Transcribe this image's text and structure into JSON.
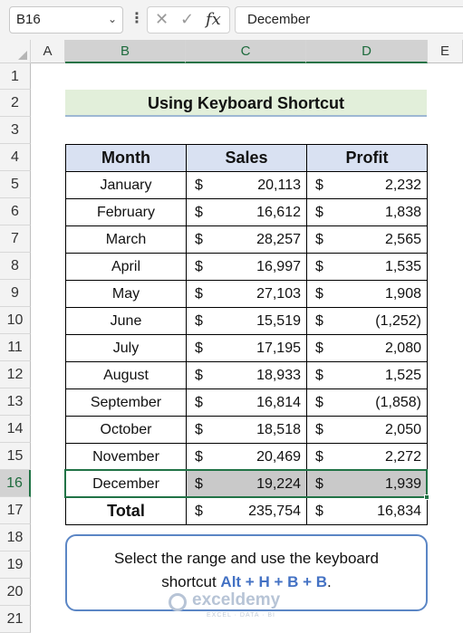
{
  "name_box": "B16",
  "formula_bar": {
    "value": "December"
  },
  "icons": {
    "chevron": "chevron-down-icon",
    "more": "more-vertical-icon",
    "cancel": "cancel-icon",
    "enter": "check-icon",
    "function": "function-icon"
  },
  "columns": [
    "A",
    "B",
    "C",
    "D",
    "E"
  ],
  "rows": [
    "1",
    "2",
    "3",
    "4",
    "5",
    "6",
    "7",
    "8",
    "9",
    "10",
    "11",
    "12",
    "13",
    "14",
    "15",
    "16",
    "17",
    "18",
    "19",
    "20",
    "21"
  ],
  "sheet": {
    "title": "Using Keyboard Shortcut",
    "headers": [
      "Month",
      "Sales",
      "Profit"
    ],
    "currency": "$",
    "records": [
      {
        "month": "January",
        "sales": "20,113",
        "profit": "2,232"
      },
      {
        "month": "February",
        "sales": "16,612",
        "profit": "1,838"
      },
      {
        "month": "March",
        "sales": "28,257",
        "profit": "2,565"
      },
      {
        "month": "April",
        "sales": "16,997",
        "profit": "1,535"
      },
      {
        "month": "May",
        "sales": "27,103",
        "profit": "1,908"
      },
      {
        "month": "June",
        "sales": "15,519",
        "profit": "(1,252)"
      },
      {
        "month": "July",
        "sales": "17,195",
        "profit": "2,080"
      },
      {
        "month": "August",
        "sales": "18,933",
        "profit": "1,525"
      },
      {
        "month": "September",
        "sales": "16,814",
        "profit": "(1,858)"
      },
      {
        "month": "October",
        "sales": "18,518",
        "profit": "2,050"
      },
      {
        "month": "November",
        "sales": "20,469",
        "profit": "2,272"
      },
      {
        "month": "December",
        "sales": "19,224",
        "profit": "1,939"
      }
    ],
    "total": {
      "label": "Total",
      "sales": "235,754",
      "profit": "16,834"
    }
  },
  "note": {
    "line1": "Select the range and use the keyboard",
    "line2_prefix": "shortcut ",
    "keys": "Alt + H + B + B",
    "line2_suffix": "."
  },
  "watermark": {
    "name": "exceldemy",
    "tagline": "EXCEL · DATA · BI"
  },
  "colors": {
    "accent": "#217346",
    "header_fill": "#d9e1f2",
    "title_fill": "#e2efda",
    "highlight_fill": "#c9c9c9",
    "key_text": "#4472c4"
  }
}
